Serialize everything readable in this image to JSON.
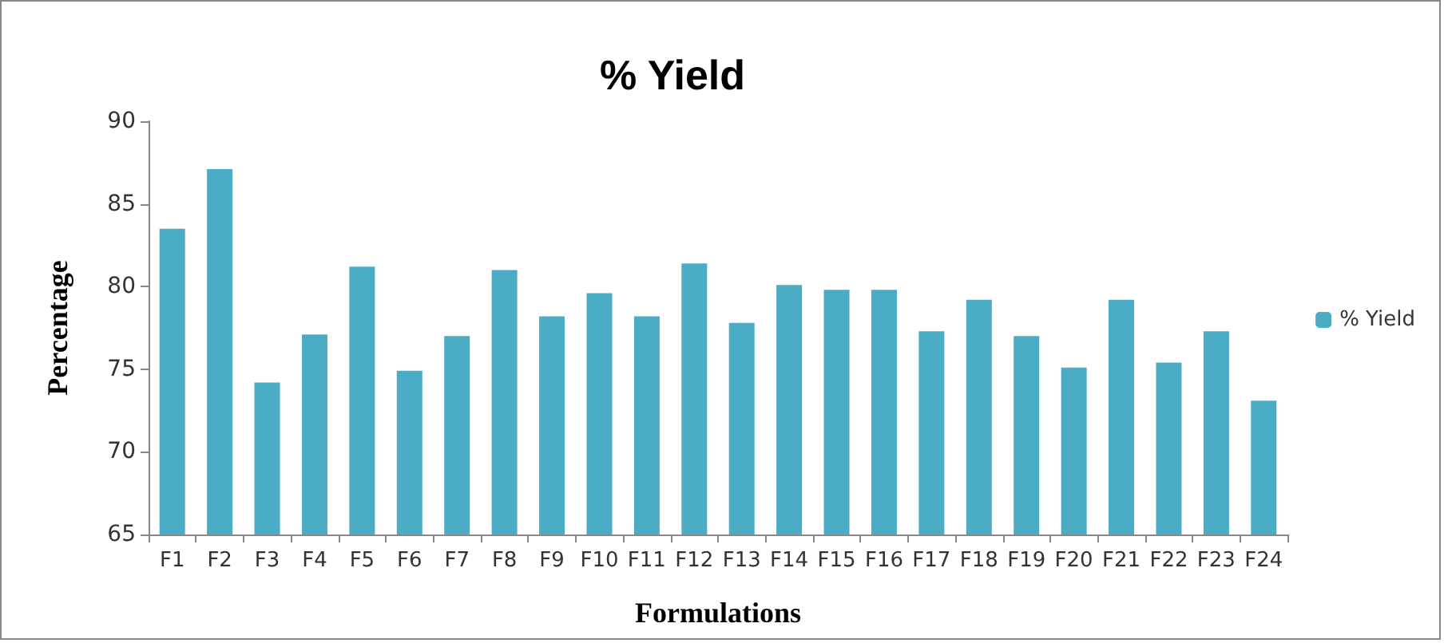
{
  "chart_data": {
    "type": "bar",
    "title": "% Yield",
    "xlabel": "Formulations",
    "ylabel": "Percentage",
    "categories": [
      "F1",
      "F2",
      "F3",
      "F4",
      "F5",
      "F6",
      "F7",
      "F8",
      "F9",
      "F10",
      "F11",
      "F12",
      "F13",
      "F14",
      "F15",
      "F16",
      "F17",
      "F18",
      "F19",
      "F20",
      "F21",
      "F22",
      "F23",
      "F24"
    ],
    "series": [
      {
        "name": "% Yield",
        "color": "#4bacc6",
        "values": [
          83.5,
          87.1,
          74.2,
          77.1,
          81.2,
          74.9,
          77.0,
          81.0,
          78.2,
          79.6,
          78.2,
          81.4,
          77.8,
          80.1,
          79.8,
          79.8,
          77.3,
          79.2,
          77.0,
          75.1,
          79.2,
          75.4,
          77.3,
          73.1
        ]
      }
    ],
    "ylim": [
      65,
      90
    ],
    "yticks": [
      65,
      70,
      75,
      80,
      85,
      90
    ],
    "grid": false,
    "legend": "right"
  }
}
